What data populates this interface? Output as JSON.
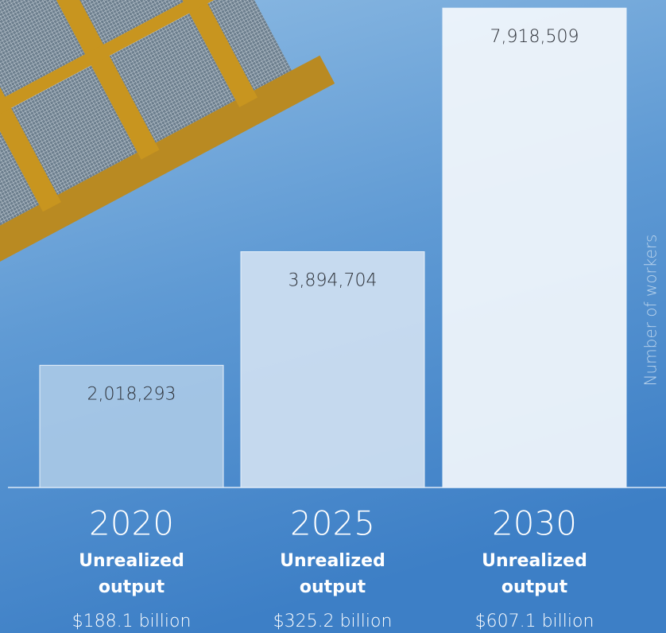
{
  "chart_data": {
    "type": "bar",
    "categories": [
      "2020",
      "2025",
      "2030"
    ],
    "values": [
      2018293,
      3894704,
      7918509
    ],
    "value_labels": [
      "2,018,293",
      "3,894,704",
      "7,918,509"
    ],
    "colors": [
      "#a9c9e6",
      "#cfe0f1",
      "#f3f7fc"
    ],
    "output_heading": [
      "Unrealized output",
      "Unrealized output",
      "Unrealized output"
    ],
    "output_values": [
      "$188.1 billion",
      "$325.2 billion",
      "$607.1 billion"
    ],
    "y_axis_label": "Number of workers",
    "ylim": [
      0,
      8000000
    ]
  }
}
